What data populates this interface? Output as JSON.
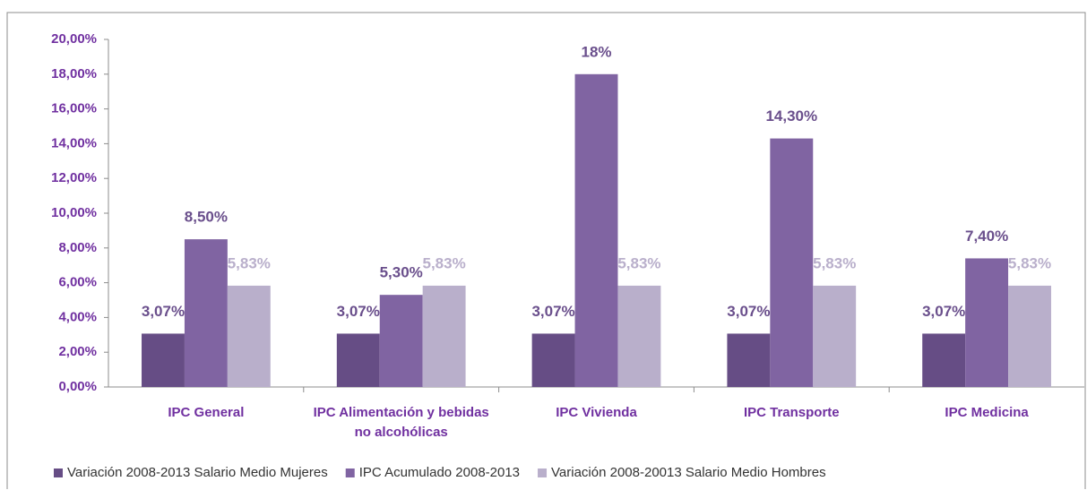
{
  "chart_data": {
    "type": "bar",
    "categories": [
      "IPC General",
      "IPC Alimentación y bebidas no alcohólicas",
      "IPC Vivienda",
      "IPC Transporte",
      "IPC Medicina"
    ],
    "series": [
      {
        "name": "Variación 2008-2013 Salario Medio Mujeres",
        "color": "#664d85",
        "label_color": "#6a4f8c",
        "values": [
          3.07,
          3.07,
          3.07,
          3.07,
          3.07
        ],
        "value_labels": [
          "3,07%",
          "3,07%",
          "3,07%",
          "3,07%",
          "3,07%"
        ]
      },
      {
        "name": "IPC Acumulado 2008-2013",
        "color": "#8064a2",
        "label_color": "#6a4f8c",
        "values": [
          8.5,
          5.3,
          18,
          14.3,
          7.4
        ],
        "value_labels": [
          "8,50%",
          "5,30%",
          "18%",
          "14,30%",
          "7,40%"
        ]
      },
      {
        "name": "Variación 2008-20013 Salario Medio Hombres",
        "color": "#b9afcb",
        "label_color": "#b9afcb",
        "values": [
          5.83,
          5.83,
          5.83,
          5.83,
          5.83
        ],
        "value_labels": [
          "5,83%",
          "5,83%",
          "5,83%",
          "5,83%",
          "5,83%"
        ]
      }
    ],
    "ylim": [
      0,
      20
    ],
    "yticks": [
      {
        "value": 0,
        "label": "0,00%"
      },
      {
        "value": 2,
        "label": "2,00%"
      },
      {
        "value": 4,
        "label": "4,00%"
      },
      {
        "value": 6,
        "label": "6,00%"
      },
      {
        "value": 8,
        "label": "8,00%"
      },
      {
        "value": 10,
        "label": "10,00%"
      },
      {
        "value": 12,
        "label": "12,00%"
      },
      {
        "value": 14,
        "label": "14,00%"
      },
      {
        "value": 16,
        "label": "16,00%"
      },
      {
        "value": 18,
        "label": "18,00%"
      },
      {
        "value": 20,
        "label": "20,00%"
      }
    ],
    "legend": "bottom"
  }
}
